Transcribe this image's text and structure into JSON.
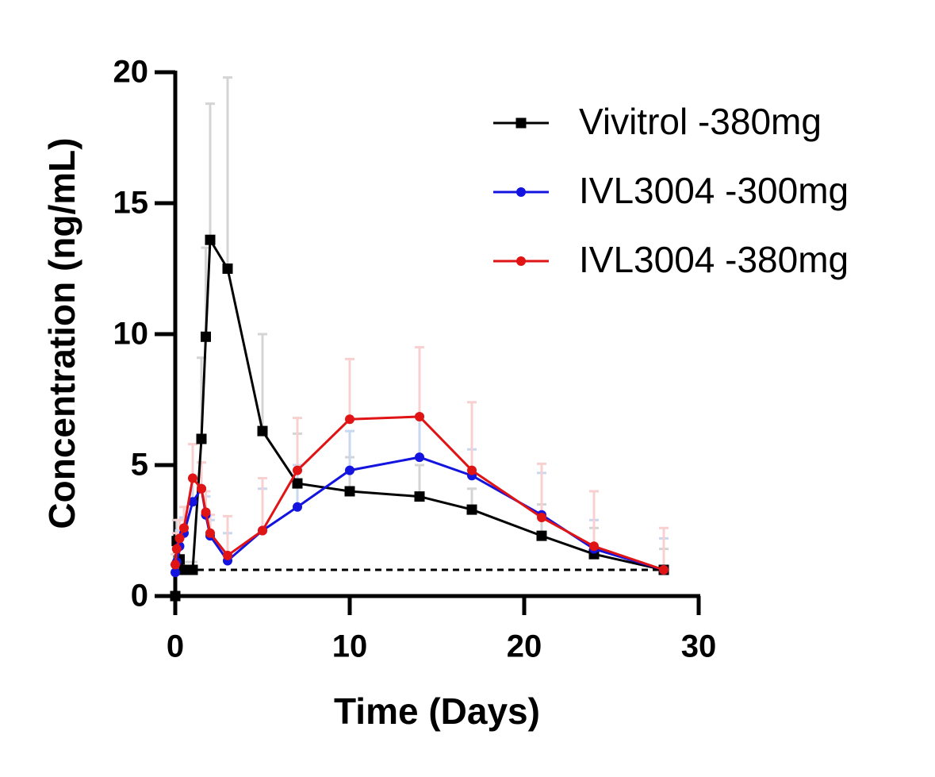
{
  "chart_data": {
    "type": "line",
    "x_label": "Time (Days)",
    "y_label": "Concentration (ng/mL)",
    "x": [
      0,
      0.083,
      0.25,
      0.5,
      1,
      1.5,
      1.75,
      2,
      3,
      5,
      7,
      10,
      14,
      17,
      21,
      24,
      28
    ],
    "series": [
      {
        "name": "Vivitrol -380mg",
        "color": "#000000",
        "error_color": "#d4d4d4",
        "marker": "square",
        "values": [
          0,
          2.1,
          1.4,
          1.0,
          1.0,
          6.0,
          9.9,
          13.6,
          12.5,
          6.3,
          4.3,
          4.0,
          3.8,
          3.3,
          2.3,
          1.6,
          1.0
        ],
        "errors": [
          0,
          0.8,
          0.5,
          0.3,
          0.3,
          3.1,
          3.4,
          5.2,
          7.3,
          3.7,
          1.9,
          1.3,
          1.2,
          0.8,
          1.2,
          1.0,
          0.8
        ]
      },
      {
        "name": "IVL3004 -300mg",
        "color": "#1414e0",
        "error_color": "#c8d8f0",
        "marker": "circle",
        "values": [
          0.9,
          1.3,
          1.9,
          2.4,
          3.6,
          4.1,
          3.1,
          2.3,
          1.35,
          2.5,
          3.4,
          4.8,
          5.3,
          4.6,
          3.1,
          1.8,
          1.0
        ],
        "errors": [
          0.3,
          0.5,
          0.6,
          0.6,
          0.9,
          1.0,
          0.7,
          0.6,
          1.05,
          1.6,
          1.6,
          1.5,
          1.6,
          1.0,
          1.6,
          1.1,
          1.2
        ]
      },
      {
        "name": "IVL3004 -380mg",
        "color": "#e01414",
        "error_color": "#f8d0d0",
        "marker": "circle",
        "values": [
          1.2,
          1.8,
          2.2,
          2.6,
          4.5,
          4.1,
          3.2,
          2.4,
          1.55,
          2.5,
          4.8,
          6.75,
          6.85,
          4.8,
          3.0,
          1.9,
          1.0
        ],
        "errors": [
          0.4,
          0.6,
          0.7,
          0.8,
          1.3,
          1.0,
          0.8,
          0.7,
          1.5,
          2.0,
          2.0,
          2.3,
          2.65,
          2.6,
          2.05,
          2.1,
          1.6
        ]
      }
    ],
    "reference_line": {
      "y": 1,
      "x": [
        0,
        28
      ]
    },
    "xlim": [
      0,
      30
    ],
    "xticks": [
      0,
      10,
      20,
      30
    ],
    "ylim": [
      0,
      20
    ],
    "yticks": [
      0,
      5,
      10,
      15,
      20
    ],
    "grid": false,
    "legend": "top-right"
  }
}
